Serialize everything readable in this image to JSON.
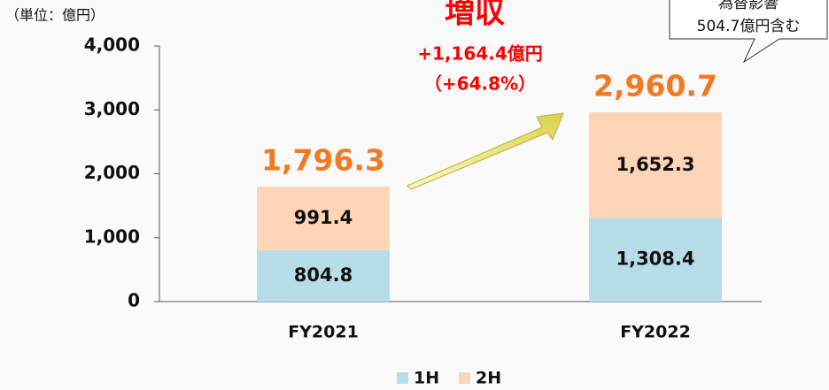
{
  "chart_data": {
    "type": "stacked_bar",
    "unit_note": "（単位：億円）",
    "categories": [
      "FY2021",
      "FY2022"
    ],
    "series": [
      {
        "name": "1H",
        "color": "#b7dde8",
        "values": [
          804.8,
          1308.4
        ],
        "value_labels": [
          "804.8",
          "1,308.4"
        ]
      },
      {
        "name": "2H",
        "color": "#fbd5b5",
        "values": [
          991.4,
          1652.3
        ],
        "value_labels": [
          "991.4",
          "1,652.3"
        ]
      }
    ],
    "totals": {
      "values": [
        1796.3,
        2960.7
      ],
      "value_labels": [
        "1,796.3",
        "2,960.7"
      ]
    },
    "ylim": [
      0,
      4000
    ],
    "yticks": [
      0,
      {
        "value": 1000,
        "label": "1,000"
      },
      {
        "value": 2000,
        "label": "2,000"
      },
      {
        "value": 3000,
        "label": "3,000"
      },
      {
        "value": 4000,
        "label": "4,000"
      }
    ],
    "annotations": {
      "headline": "増収",
      "change": "+1,164.4億円",
      "change_pct": "（+64.8%）"
    },
    "callout": [
      "為替影響",
      "504.7億円含む"
    ],
    "total_color": "#f47920"
  }
}
